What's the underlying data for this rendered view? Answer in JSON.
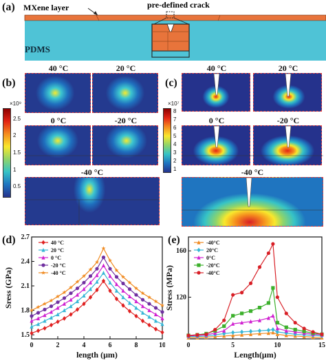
{
  "panel_a": {
    "label": "(a)",
    "mxene_label": "MXene layer",
    "pdms_label": "PDMS",
    "crack_label": "pre-defined crack",
    "colors": {
      "mxene": "#e8743b",
      "pdms": "#4fc3d6"
    }
  },
  "panel_b": {
    "label": "(b)",
    "temps": [
      "40 °C",
      "20 °C",
      "0 °C",
      "-20 °C",
      "-40 °C"
    ],
    "colorbar": {
      "exponent": "×10⁹",
      "ticks": [
        "2.5",
        "2",
        "1.5",
        "1",
        "0.5"
      ]
    }
  },
  "panel_c": {
    "label": "(c)",
    "temps": [
      "40 °C",
      "20 °C",
      "0 °C",
      "-20 °C",
      "-40 °C"
    ],
    "colorbar": {
      "exponent": "×10⁷",
      "ticks": [
        "8",
        "7",
        "6",
        "5",
        "4",
        "3",
        "2",
        "1"
      ]
    }
  },
  "chart_data": [
    {
      "panel": "(d)",
      "type": "line",
      "xlabel": "length (μm)",
      "ylabel": "Sress (GPa)",
      "xlim": [
        0,
        10
      ],
      "ylim": [
        1.45,
        2.7
      ],
      "xticks": [
        "0",
        "2",
        "4",
        "6",
        "8",
        "10"
      ],
      "yticks": [
        "1.5",
        "1.8",
        "2.1",
        "2.4",
        "2.7"
      ],
      "legend_position": "top-left",
      "series": [
        {
          "name": "40 °C",
          "color": "#e02020",
          "marker": "diamond",
          "x": [
            0,
            0.5,
            1,
            1.5,
            2,
            2.5,
            3,
            3.5,
            4,
            4.5,
            5,
            5.5,
            6,
            6.5,
            7,
            7.5,
            8,
            8.5,
            9,
            9.5,
            10
          ],
          "values": [
            1.52,
            1.55,
            1.58,
            1.62,
            1.66,
            1.7,
            1.75,
            1.81,
            1.88,
            1.96,
            2.05,
            2.16,
            2.04,
            1.94,
            1.86,
            1.79,
            1.73,
            1.67,
            1.62,
            1.57,
            1.53
          ]
        },
        {
          "name": "20 °C",
          "color": "#36b6d6",
          "marker": "triangle",
          "x": [
            0,
            0.5,
            1,
            1.5,
            2,
            2.5,
            3,
            3.5,
            4,
            4.5,
            5,
            5.5,
            6,
            6.5,
            7,
            7.5,
            8,
            8.5,
            9,
            9.5,
            10
          ],
          "values": [
            1.6,
            1.63,
            1.67,
            1.71,
            1.75,
            1.8,
            1.85,
            1.91,
            1.98,
            2.06,
            2.15,
            2.26,
            2.14,
            2.04,
            1.96,
            1.89,
            1.83,
            1.77,
            1.72,
            1.67,
            1.63
          ]
        },
        {
          "name": "0 °C",
          "color": "#d020d0",
          "marker": "triangle",
          "x": [
            0,
            0.5,
            1,
            1.5,
            2,
            2.5,
            3,
            3.5,
            4,
            4.5,
            5,
            5.5,
            6,
            6.5,
            7,
            7.5,
            8,
            8.5,
            9,
            9.5,
            10
          ],
          "values": [
            1.67,
            1.7,
            1.74,
            1.78,
            1.83,
            1.88,
            1.93,
            1.99,
            2.06,
            2.14,
            2.23,
            2.35,
            2.22,
            2.12,
            2.04,
            1.97,
            1.91,
            1.85,
            1.8,
            1.75,
            1.7
          ]
        },
        {
          "name": "-20 °C",
          "color": "#7030a0",
          "marker": "circle",
          "x": [
            0,
            0.5,
            1,
            1.5,
            2,
            2.5,
            3,
            3.5,
            4,
            4.5,
            5,
            5.5,
            6,
            6.5,
            7,
            7.5,
            8,
            8.5,
            9,
            9.5,
            10
          ],
          "values": [
            1.73,
            1.77,
            1.81,
            1.85,
            1.9,
            1.95,
            2.01,
            2.07,
            2.14,
            2.22,
            2.31,
            2.45,
            2.31,
            2.21,
            2.13,
            2.06,
            1.99,
            1.93,
            1.88,
            1.83,
            1.78
          ]
        },
        {
          "name": "-40 °C",
          "color": "#f08a20",
          "marker": "star",
          "x": [
            0,
            0.5,
            1,
            1.5,
            2,
            2.5,
            3,
            3.5,
            4,
            4.5,
            5,
            5.5,
            6,
            6.5,
            7,
            7.5,
            8,
            8.5,
            9,
            9.5,
            10
          ],
          "values": [
            1.8,
            1.84,
            1.88,
            1.92,
            1.97,
            2.02,
            2.08,
            2.15,
            2.22,
            2.3,
            2.39,
            2.56,
            2.41,
            2.29,
            2.21,
            2.14,
            2.07,
            2.01,
            1.96,
            1.91,
            1.86
          ]
        }
      ]
    },
    {
      "panel": "(e)",
      "type": "line",
      "xlabel": "Length(μm)",
      "ylabel": "Stress (MPa)",
      "xlim": [
        0,
        15
      ],
      "ylim": [
        84,
        172
      ],
      "xticks": [
        "0",
        "5",
        "10",
        "15"
      ],
      "yticks": [
        "80",
        "120",
        "160"
      ],
      "legend_position": "top-left",
      "series": [
        {
          "name": "-40°C",
          "color": "#f08a20",
          "marker": "triangle",
          "x": [
            0,
            1,
            2,
            3,
            4,
            5,
            6,
            7,
            8,
            9,
            9.5,
            10,
            11,
            12,
            13,
            14,
            15
          ],
          "values": [
            85,
            85,
            85.5,
            86,
            86.5,
            87,
            87.5,
            88,
            88.5,
            89,
            89.5,
            88,
            87,
            86.5,
            86,
            85.5,
            85
          ]
        },
        {
          "name": "20°C",
          "color": "#36b6d6",
          "marker": "diamond",
          "x": [
            0,
            1,
            2,
            3,
            4,
            5,
            6,
            7,
            8,
            9,
            9.5,
            10,
            11,
            12,
            13,
            14,
            15
          ],
          "values": [
            86,
            86,
            86.5,
            87.5,
            88.5,
            89.5,
            90,
            90.5,
            91,
            91.5,
            92,
            90,
            89,
            88,
            87.5,
            87,
            86.5
          ]
        },
        {
          "name": "0°C",
          "color": "#d020d0",
          "marker": "triangle",
          "x": [
            0,
            1,
            2,
            3,
            4,
            5,
            6,
            7,
            8,
            9,
            9.5,
            10,
            11,
            12,
            13,
            14,
            15
          ],
          "values": [
            86.5,
            87,
            87.5,
            89,
            91,
            97,
            98,
            99,
            100,
            102,
            104,
            93,
            91,
            90,
            89,
            88,
            87.5
          ]
        },
        {
          "name": "-20°C",
          "color": "#3cb02c",
          "marker": "square",
          "x": [
            0,
            1,
            2,
            3,
            4,
            5,
            6,
            7,
            8,
            9,
            9.5,
            10,
            11,
            12,
            13,
            14,
            15
          ],
          "values": [
            87,
            87.5,
            88.5,
            91,
            95,
            104,
            106,
            108,
            111,
            115,
            128,
            98,
            94,
            92,
            90.5,
            89,
            88
          ]
        },
        {
          "name": "-40°C",
          "color": "#d81f26",
          "marker": "circle",
          "x": [
            0,
            1,
            2,
            3,
            4,
            5,
            6,
            7,
            8,
            9,
            9.5,
            10,
            11,
            12,
            13,
            14,
            15
          ],
          "values": [
            87,
            87.5,
            88,
            92,
            100,
            122,
            124,
            132,
            146,
            158,
            166,
            120,
            106,
            98,
            93,
            90,
            88
          ]
        }
      ]
    }
  ]
}
